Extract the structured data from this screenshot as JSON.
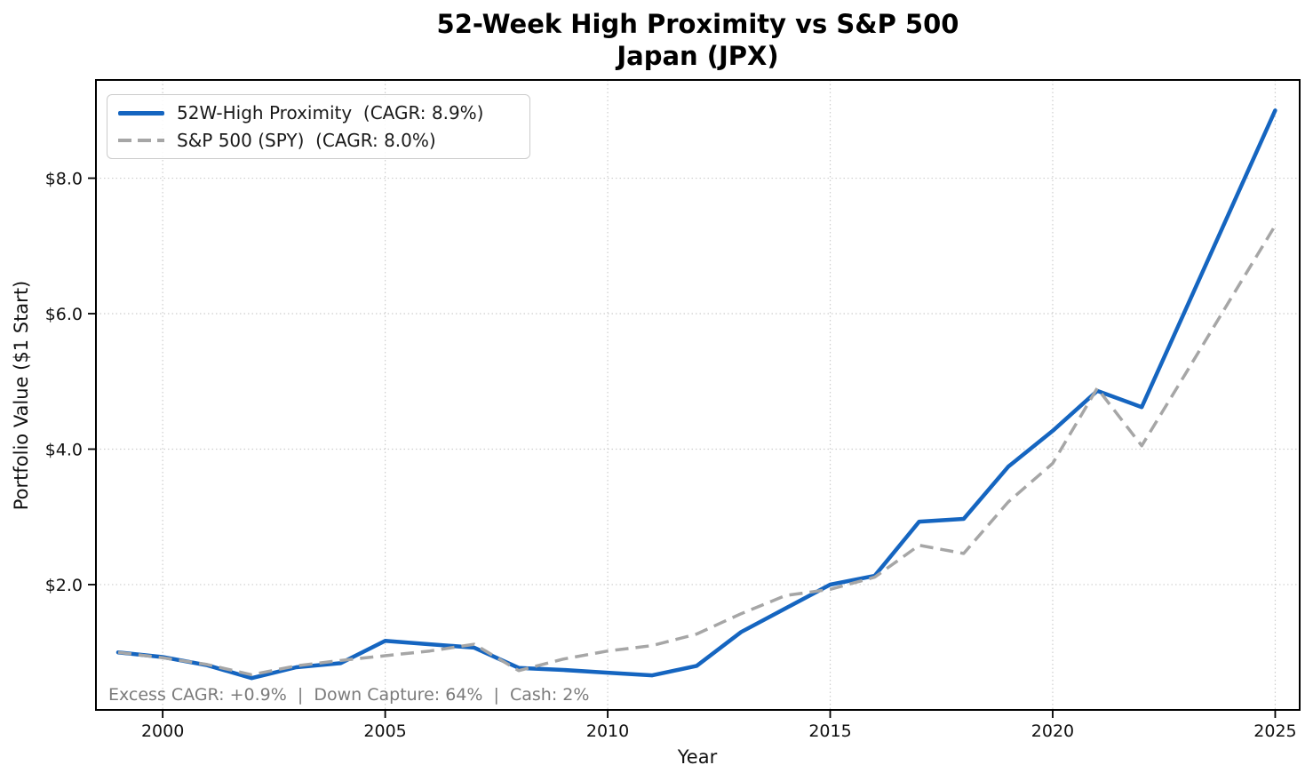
{
  "chart_data": {
    "type": "line",
    "title": "52-Week High Proximity vs S&P 500",
    "subtitle": "Japan (JPX)",
    "xlabel": "Year",
    "ylabel": "Portfolio Value ($1 Start)",
    "grid": true,
    "legend_position": "upper left",
    "xlim": [
      1998.5,
      2025.55
    ],
    "ylim": [
      0.15,
      9.45
    ],
    "x": [
      1999,
      2000,
      2001,
      2002,
      2003,
      2004,
      2005,
      2006,
      2007,
      2008,
      2009,
      2010,
      2011,
      2012,
      2013,
      2014,
      2015,
      2016,
      2017,
      2018,
      2019,
      2020,
      2021,
      2022,
      2023,
      2024,
      2025
    ],
    "series": [
      {
        "id": "strategy",
        "name": "52W-High Proximity  (CAGR: 8.9%)",
        "color": "#1565c0",
        "style": "solid",
        "values": [
          1.0,
          0.93,
          0.81,
          0.62,
          0.78,
          0.84,
          1.17,
          1.12,
          1.07,
          0.77,
          0.74,
          0.7,
          0.66,
          0.8,
          1.3,
          1.65,
          2.0,
          2.13,
          2.93,
          2.97,
          3.74,
          4.27,
          4.86,
          4.62,
          6.08,
          7.54,
          9.0
        ]
      },
      {
        "id": "benchmark",
        "name": "S&P 500 (SPY)  (CAGR: 8.0%)",
        "color": "#a6a6a6",
        "style": "dashed",
        "values": [
          1.0,
          0.92,
          0.82,
          0.67,
          0.8,
          0.88,
          0.95,
          1.02,
          1.12,
          0.73,
          0.9,
          1.02,
          1.1,
          1.27,
          1.57,
          1.84,
          1.93,
          2.11,
          2.58,
          2.46,
          3.22,
          3.79,
          4.9,
          4.05,
          5.13,
          6.22,
          7.3
        ]
      }
    ],
    "x_ticks": {
      "values": [
        2000,
        2005,
        2010,
        2015,
        2020,
        2025
      ],
      "labels": [
        "2000",
        "2005",
        "2010",
        "2015",
        "2020",
        "2025"
      ]
    },
    "y_ticks": {
      "values": [
        2,
        4,
        6,
        8
      ],
      "labels": [
        "$2.0",
        "$4.0",
        "$6.0",
        "$8.0"
      ]
    }
  },
  "annotation": {
    "text": "Excess CAGR: +0.9%  |  Down Capture: 64%  |  Cash: 2%"
  }
}
